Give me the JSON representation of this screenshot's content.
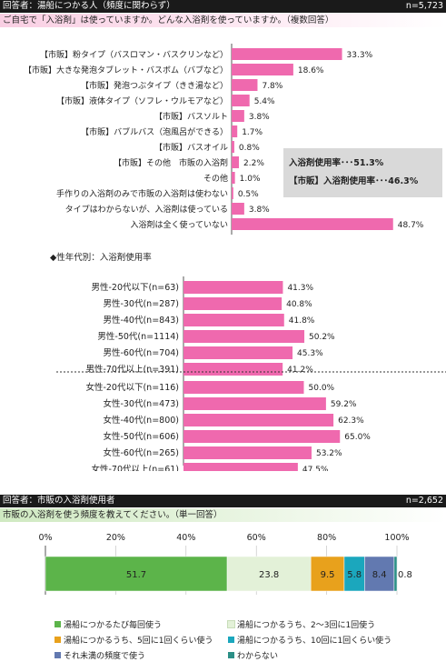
{
  "section1": {
    "header_left": "回答者：湯船につかる人（頻度に関わらず）",
    "header_right": "n=5,723",
    "question": "ご自宅で「入浴剤」は使っていますか。どんな入浴剤を使っていますか。（複数回答）",
    "summary_lines": [
      "入浴剤使用率･･･51.3%",
      "【市販】入浴剤使用率･･･46.3%"
    ],
    "subheading": "◆性年代別：入浴剤使用率"
  },
  "section2": {
    "header_left": "回答者：市販の入浴剤使用者",
    "header_right": "n=2,652",
    "question": "市販の入浴剤を使う頻度を教えてください。（単一回答）"
  },
  "colors": {
    "pink": "#ef69ae",
    "green": "#5cb44a",
    "lightgreen": "#e3f1d8",
    "orange": "#e8a11c",
    "teal": "#1ba7bd",
    "slate": "#6279b0",
    "darkteal": "#2b8f86"
  },
  "chart_data": [
    {
      "type": "bar",
      "orientation": "horizontal",
      "categories": [
        "【市販】粉タイプ（バスロマン・バスクリンなど）",
        "【市販】大きな発泡タブレット・バスボム（バブなど）",
        "【市販】発泡つぶタイプ（きき湯など）",
        "【市販】液体タイプ（ソフレ・ウルモアなど）",
        "【市販】バスソルト",
        "【市販】バブルバス（泡風呂ができる）",
        "【市販】バスオイル",
        "【市販】その他　市販の入浴剤",
        "その他",
        "手作りの入浴剤のみで市販の入浴剤は使わない",
        "タイプはわからないが、入浴剤は使っている",
        "入浴剤は全く使っていない"
      ],
      "values": [
        33.3,
        18.6,
        7.8,
        5.4,
        3.8,
        1.7,
        0.8,
        2.2,
        1.0,
        0.5,
        3.8,
        48.7
      ],
      "labels": [
        "33.3%",
        "18.6%",
        "7.8%",
        "5.4%",
        "3.8%",
        "1.7%",
        "0.8%",
        "2.2%",
        "1.0%",
        "0.5%",
        "3.8%",
        "48.7%"
      ],
      "xlim": [
        0,
        50
      ]
    },
    {
      "type": "bar",
      "orientation": "horizontal",
      "categories": [
        "男性-20代以下(n=63)",
        "男性-30代(n=287)",
        "男性-40代(n=843)",
        "男性-50代(n=1114)",
        "男性-60代(n=704)",
        "男性-70代以上(n=391)",
        "女性-20代以下(n=116)",
        "女性-30代(n=473)",
        "女性-40代(n=800)",
        "女性-50代(n=606)",
        "女性-60代(n=265)",
        "女性-70代以上(n=61)"
      ],
      "values": [
        41.3,
        40.8,
        41.8,
        50.2,
        45.3,
        41.2,
        50.0,
        59.2,
        62.3,
        65.0,
        53.2,
        47.5
      ],
      "labels": [
        "41.3%",
        "40.8%",
        "41.8%",
        "50.2%",
        "45.3%",
        "41.2%",
        "50.0%",
        "59.2%",
        "62.3%",
        "65.0%",
        "53.2%",
        "47.5%"
      ],
      "xlim": [
        0,
        100
      ]
    },
    {
      "type": "bar",
      "orientation": "horizontal",
      "stacked": "100%",
      "x_ticks": [
        "0%",
        "20%",
        "40%",
        "60%",
        "80%",
        "100%"
      ],
      "xlim": [
        0,
        100
      ],
      "series": [
        {
          "name": "湯船につかるたび毎回使う",
          "value": 51.7,
          "label": "51.7"
        },
        {
          "name": "湯船につかるうち、2～3回に1回使う",
          "value": 23.8,
          "label": "23.8"
        },
        {
          "name": "湯船につかるうち、5回に1回くらい使う",
          "value": 9.5,
          "label": "9.5"
        },
        {
          "name": "湯船につかるうち、10回に1回くらい使う",
          "value": 5.8,
          "label": "5.8"
        },
        {
          "name": "それ未満の頻度で使う",
          "value": 8.4,
          "label": "8.4"
        },
        {
          "name": "わからない",
          "value": 0.8,
          "label": "0.8"
        }
      ],
      "legend": "bottom"
    }
  ]
}
